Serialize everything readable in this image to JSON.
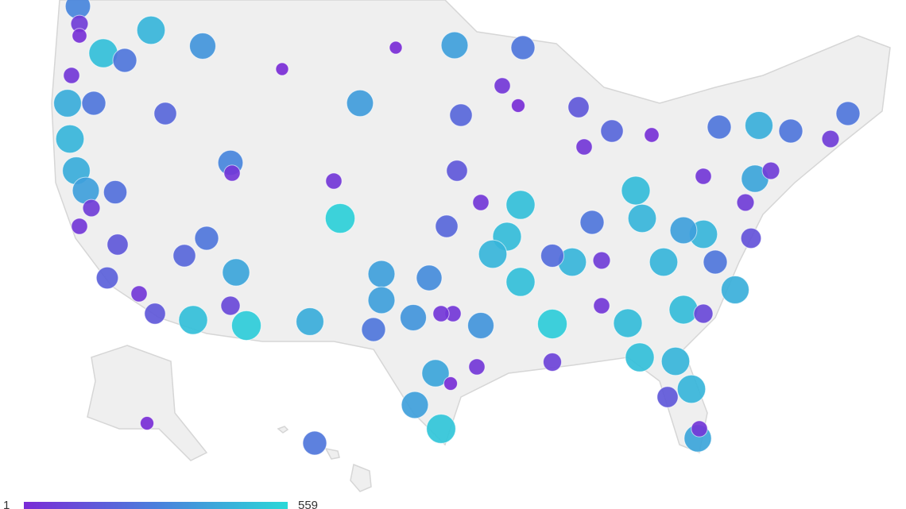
{
  "legend": {
    "min": 1,
    "max": 559
  },
  "points": {
    "values": [
      300,
      60,
      20,
      450,
      480,
      250,
      40,
      420,
      250,
      200,
      450,
      420,
      380,
      230,
      60,
      40,
      150,
      180,
      40,
      150,
      200,
      250,
      480,
      400,
      100,
      520,
      350,
      5,
      5,
      380,
      250,
      370,
      300,
      40,
      40,
      530,
      380,
      380,
      420,
      250,
      350,
      320,
      40,
      400,
      380,
      500,
      450,
      480,
      520,
      480,
      470,
      40,
      200,
      200,
      150,
      40,
      10,
      150,
      40,
      200,
      20,
      470,
      450,
      250,
      60,
      40,
      470,
      480,
      450,
      380,
      450,
      250,
      40,
      400,
      60,
      250,
      60,
      250,
      430,
      250,
      450,
      450,
      150,
      40,
      400,
      470,
      100,
      430,
      130,
      60,
      10,
      250,
      80,
      40,
      10,
      40,
      220,
      450,
      350
    ]
  }
}
